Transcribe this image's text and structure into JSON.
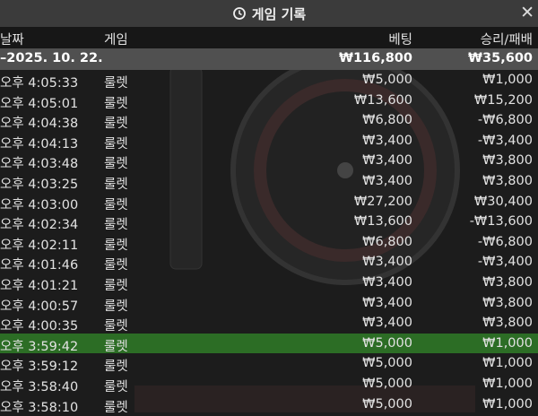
{
  "header": {
    "title": "게임 기록",
    "close": "✕"
  },
  "table": {
    "columns": [
      "날짜",
      "게임",
      "베팅",
      "승리/패배"
    ],
    "summary": {
      "date": "–2025. 10. 22.",
      "bet": "₩116,800",
      "result": "₩35,600"
    },
    "rows": [
      {
        "time": "오후 4:05:33",
        "game": "룰렛",
        "bet": "₩5,000",
        "result": "₩1,000"
      },
      {
        "time": "오후 4:05:01",
        "game": "룰렛",
        "bet": "₩13,600",
        "result": "₩15,200"
      },
      {
        "time": "오후 4:04:38",
        "game": "룰렛",
        "bet": "₩6,800",
        "result": "-₩6,800"
      },
      {
        "time": "오후 4:04:13",
        "game": "룰렛",
        "bet": "₩3,400",
        "result": "-₩3,400"
      },
      {
        "time": "오후 4:03:48",
        "game": "룰렛",
        "bet": "₩3,400",
        "result": "₩3,800"
      },
      {
        "time": "오후 4:03:25",
        "game": "룰렛",
        "bet": "₩3,400",
        "result": "₩3,800"
      },
      {
        "time": "오후 4:03:00",
        "game": "룰렛",
        "bet": "₩27,200",
        "result": "₩30,400"
      },
      {
        "time": "오후 4:02:34",
        "game": "룰렛",
        "bet": "₩13,600",
        "result": "-₩13,600"
      },
      {
        "time": "오후 4:02:11",
        "game": "룰렛",
        "bet": "₩6,800",
        "result": "-₩6,800"
      },
      {
        "time": "오후 4:01:46",
        "game": "룰렛",
        "bet": "₩3,400",
        "result": "-₩3,400"
      },
      {
        "time": "오후 4:01:21",
        "game": "룰렛",
        "bet": "₩3,400",
        "result": "₩3,800"
      },
      {
        "time": "오후 4:00:57",
        "game": "룰렛",
        "bet": "₩3,400",
        "result": "₩3,800"
      },
      {
        "time": "오후 4:00:35",
        "game": "룰렛",
        "bet": "₩3,400",
        "result": "₩3,800"
      },
      {
        "time": "오후 3:59:42",
        "game": "룰렛",
        "bet": "₩5,000",
        "result": "₩1,000",
        "highlight": true
      },
      {
        "time": "오후 3:59:12",
        "game": "룰렛",
        "bet": "₩5,000",
        "result": "₩1,000"
      },
      {
        "time": "오후 3:58:40",
        "game": "룰렛",
        "bet": "₩5,000",
        "result": "₩1,000"
      },
      {
        "time": "오후 3:58:10",
        "game": "룰렛",
        "bet": "₩5,000",
        "result": "₩1,000"
      }
    ]
  }
}
